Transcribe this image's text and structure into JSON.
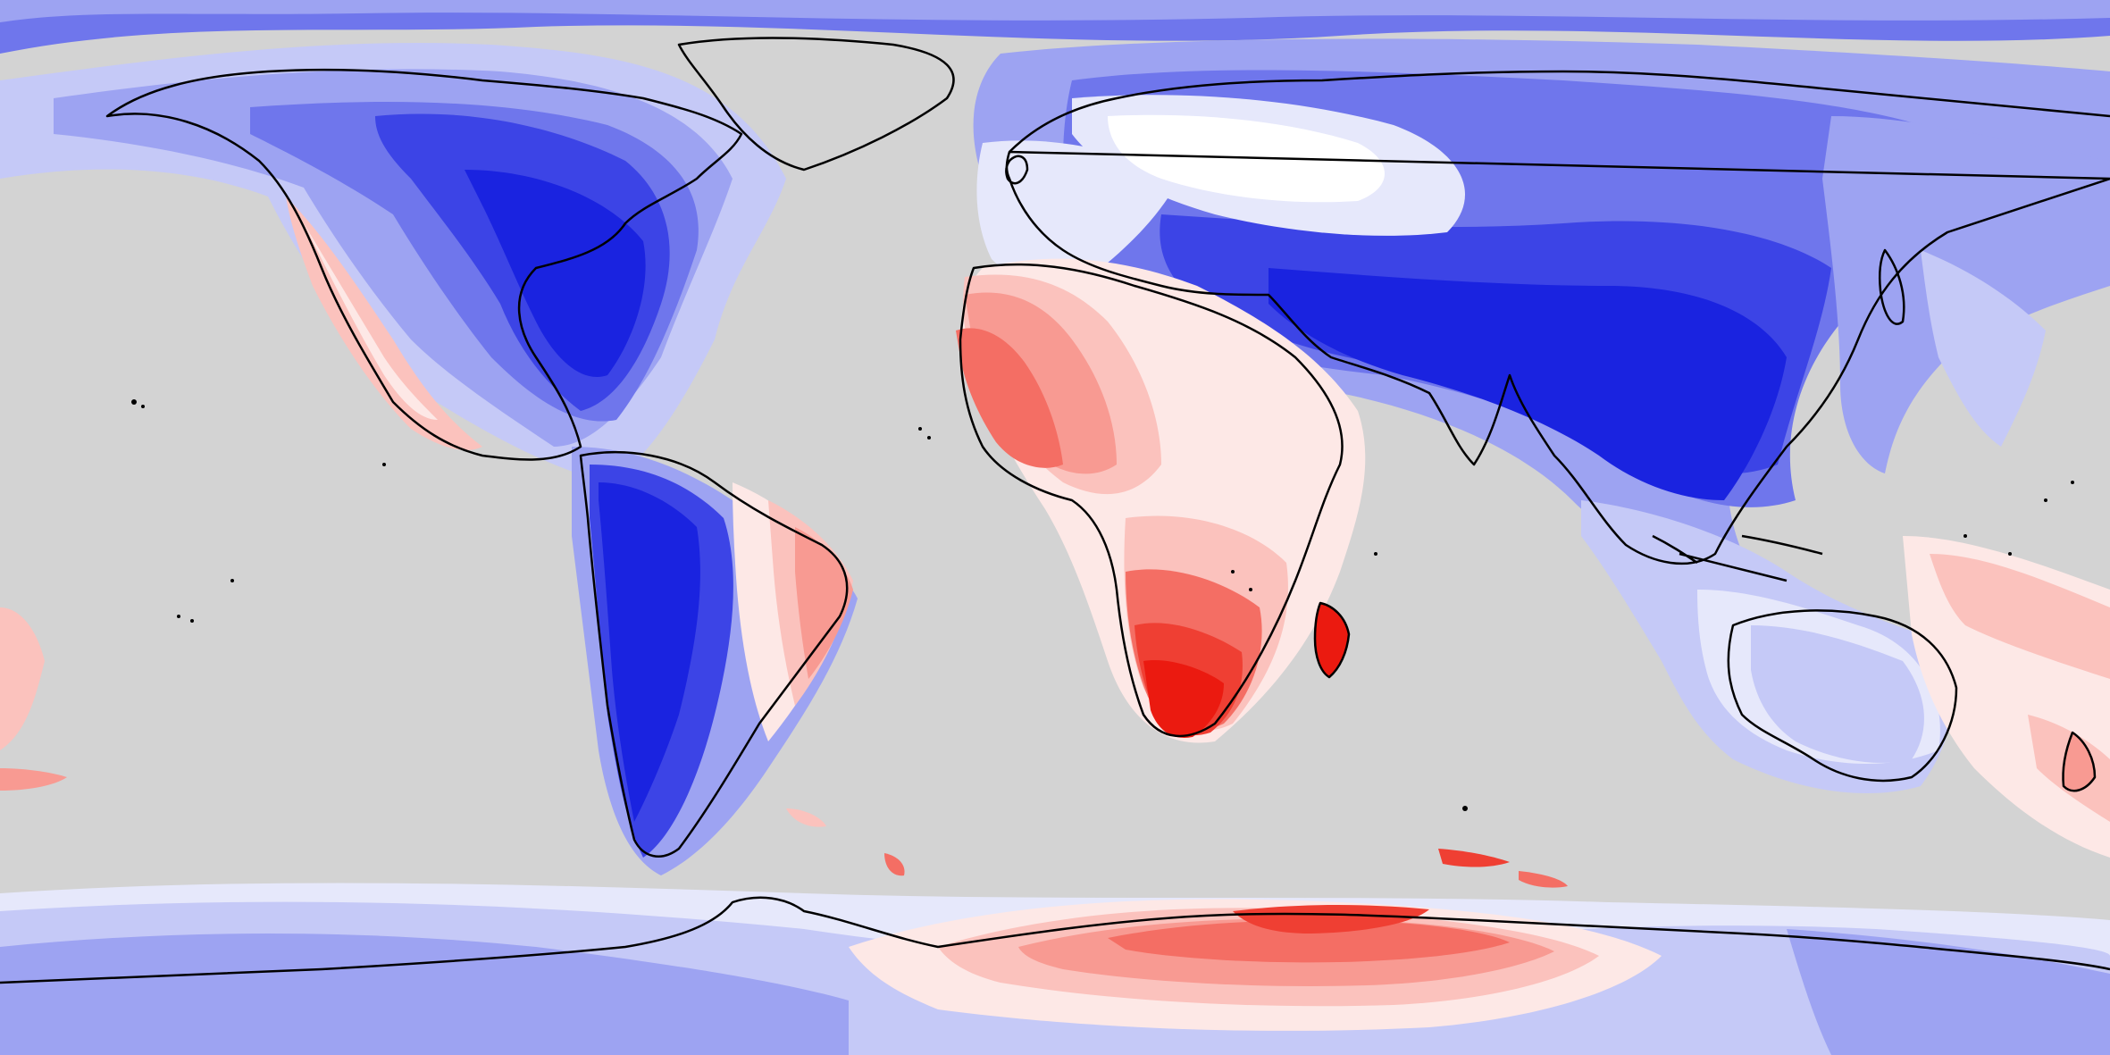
{
  "map": {
    "projection": "equirectangular",
    "background_color": "#d3d3d3",
    "coastline_color": "#000000",
    "color_scale": {
      "type": "diverging",
      "negative_colors": [
        "#e6e8fb",
        "#c5c9f7",
        "#9da3f2",
        "#6f76ec",
        "#3c44e6",
        "#1a23e0"
      ],
      "neutral_color": "#ffffff",
      "positive_colors": [
        "#fde8e6",
        "#fbc2bd",
        "#f89a92",
        "#f46e64",
        "#ef3f33",
        "#eb1a10"
      ]
    },
    "regions": [
      {
        "name": "north-america",
        "level": -5
      },
      {
        "name": "south-america",
        "level": -4
      },
      {
        "name": "europe",
        "level": -1
      },
      {
        "name": "asia",
        "level": -5
      },
      {
        "name": "west-africa",
        "level": 4
      },
      {
        "name": "southern-africa",
        "level": 5
      },
      {
        "name": "madagascar",
        "level": 5
      },
      {
        "name": "australia",
        "level": -1
      },
      {
        "name": "new-zealand",
        "level": 2
      },
      {
        "name": "antarctica-east",
        "level": 4
      },
      {
        "name": "antarctica-west",
        "level": -2
      }
    ]
  }
}
